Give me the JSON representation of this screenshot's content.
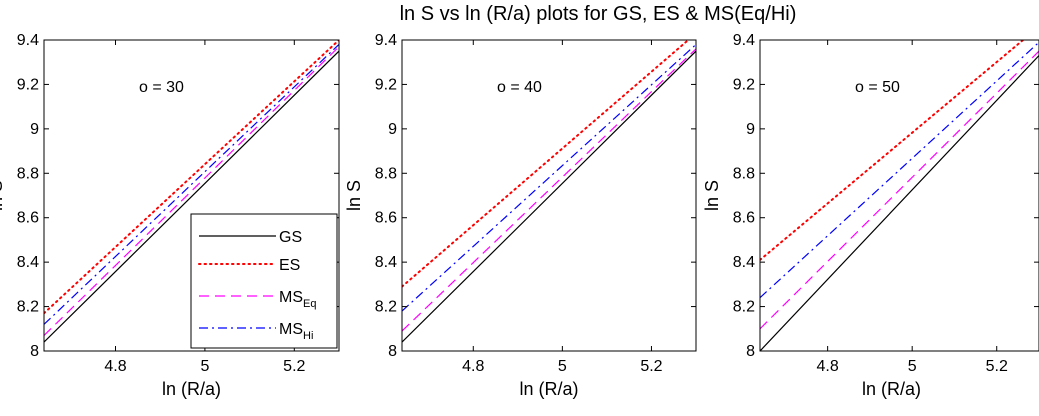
{
  "figure": {
    "title": "ln S vs ln (R/a) plots for GS, ES & MS(Eq/Hi)"
  },
  "colors": {
    "GS": "#000000",
    "ES": "#ff0000",
    "MS_Eq": "#ff00ff",
    "MS_Hi": "#0000ff"
  },
  "legend": {
    "placement": "bottom-right of first panel",
    "entries": [
      {
        "key": "GS",
        "label": "GS",
        "sub": "",
        "dash": "solid"
      },
      {
        "key": "ES",
        "label": "ES",
        "sub": "",
        "dash": "dotted"
      },
      {
        "key": "MS_Eq",
        "label": "MS",
        "sub": "Eq",
        "dash": "dashed"
      },
      {
        "key": "MS_Hi",
        "label": "MS",
        "sub": "Hi",
        "dash": "dashdot"
      }
    ]
  },
  "chart_data": [
    {
      "type": "line",
      "annotation": "o = 30",
      "xlabel": "ln (R/a)",
      "ylabel": "ln S",
      "xlim": [
        4.64,
        5.3
      ],
      "ylim": [
        8.0,
        9.4
      ],
      "xticks": [
        "4.8",
        "5",
        "5.2"
      ],
      "yticks": [
        "8",
        "8.2",
        "8.4",
        "8.6",
        "8.8",
        "9",
        "9.2",
        "9.4"
      ],
      "grid": false,
      "series": [
        {
          "name": "GS",
          "x": [
            4.64,
            5.3
          ],
          "y": [
            8.04,
            9.35
          ]
        },
        {
          "name": "ES",
          "x": [
            4.64,
            5.3
          ],
          "y": [
            8.17,
            9.4
          ]
        },
        {
          "name": "MS_Eq",
          "x": [
            4.64,
            5.3
          ],
          "y": [
            8.07,
            9.37
          ]
        },
        {
          "name": "MS_Hi",
          "x": [
            4.64,
            5.3
          ],
          "y": [
            8.12,
            9.38
          ]
        }
      ]
    },
    {
      "type": "line",
      "annotation": "o = 40",
      "xlabel": "ln (R/a)",
      "ylabel": "ln S",
      "xlim": [
        4.64,
        5.3
      ],
      "ylim": [
        8.0,
        9.4
      ],
      "xticks": [
        "4.8",
        "5",
        "5.2"
      ],
      "yticks": [
        "8",
        "8.2",
        "8.4",
        "8.6",
        "8.8",
        "9",
        "9.2",
        "9.4"
      ],
      "grid": false,
      "series": [
        {
          "name": "GS",
          "x": [
            4.64,
            5.3
          ],
          "y": [
            8.04,
            9.35
          ]
        },
        {
          "name": "ES",
          "x": [
            4.64,
            5.3
          ],
          "y": [
            8.29,
            9.43
          ]
        },
        {
          "name": "MS_Eq",
          "x": [
            4.64,
            5.3
          ],
          "y": [
            8.09,
            9.36
          ]
        },
        {
          "name": "MS_Hi",
          "x": [
            4.64,
            5.3
          ],
          "y": [
            8.18,
            9.38
          ]
        }
      ]
    },
    {
      "type": "line",
      "annotation": "o = 50",
      "xlabel": "ln (R/a)",
      "ylabel": "ln S",
      "xlim": [
        4.64,
        5.3
      ],
      "ylim": [
        8.0,
        9.4
      ],
      "xticks": [
        "4.8",
        "5",
        "5.2"
      ],
      "yticks": [
        "8",
        "8.2",
        "8.4",
        "8.6",
        "8.8",
        "9",
        "9.2",
        "9.4"
      ],
      "grid": false,
      "series": [
        {
          "name": "GS",
          "x": [
            4.64,
            5.3
          ],
          "y": [
            8.0,
            9.33
          ]
        },
        {
          "name": "ES",
          "x": [
            4.64,
            5.3
          ],
          "y": [
            8.41,
            9.46
          ]
        },
        {
          "name": "MS_Eq",
          "x": [
            4.64,
            5.3
          ],
          "y": [
            8.1,
            9.35
          ]
        },
        {
          "name": "MS_Hi",
          "x": [
            4.64,
            5.3
          ],
          "y": [
            8.24,
            9.39
          ]
        }
      ]
    }
  ]
}
